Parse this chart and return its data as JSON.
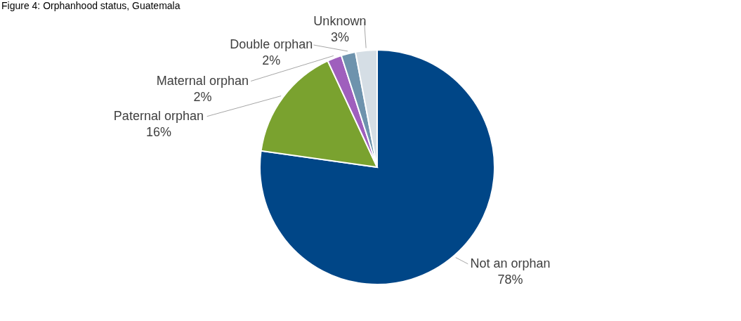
{
  "chart_data": {
    "type": "pie",
    "title": "Figure 4: Orphanhood status, Guatemala",
    "categories": [
      "Not an orphan",
      "Paternal orphan",
      "Maternal orphan",
      "Double orphan",
      "Unknown"
    ],
    "values": [
      78,
      16,
      2,
      2,
      3
    ],
    "colors": [
      "#004687",
      "#7aa22f",
      "#9f5fbd",
      "#6e93ad",
      "#d5dee5"
    ],
    "value_labels": [
      "78%",
      "16%",
      "2%",
      "2%",
      "3%"
    ]
  }
}
